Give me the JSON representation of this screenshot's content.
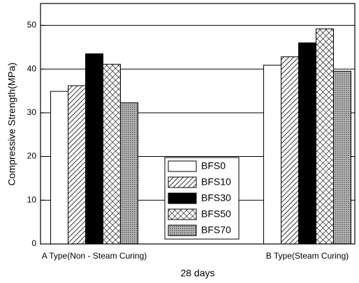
{
  "chart_data": {
    "type": "bar",
    "x_label": "28 days",
    "y_label": "Compressive Strength(MPa)",
    "categories": [
      "A Type(Non - Steam Curing)",
      "B Type(Steam Curing)"
    ],
    "series": [
      {
        "name": "BFS0",
        "color": "#ffffff",
        "pattern": "none",
        "values": [
          34.9,
          40.9
        ]
      },
      {
        "name": "BFS10",
        "color": "#ffffff",
        "pattern": "diagonal",
        "values": [
          36.2,
          42.8
        ]
      },
      {
        "name": "BFS30",
        "color": "#000000",
        "pattern": "none",
        "values": [
          43.5,
          46.0
        ]
      },
      {
        "name": "BFS50",
        "color": "#ffffff",
        "pattern": "cross",
        "values": [
          41.1,
          49.2
        ]
      },
      {
        "name": "BFS70",
        "color": "#9a9a9a",
        "pattern": "dots",
        "values": [
          32.3,
          39.5
        ]
      }
    ],
    "ylim": [
      0,
      55
    ],
    "yticks": [
      0,
      10,
      20,
      30,
      40,
      50
    ],
    "grid": true
  }
}
